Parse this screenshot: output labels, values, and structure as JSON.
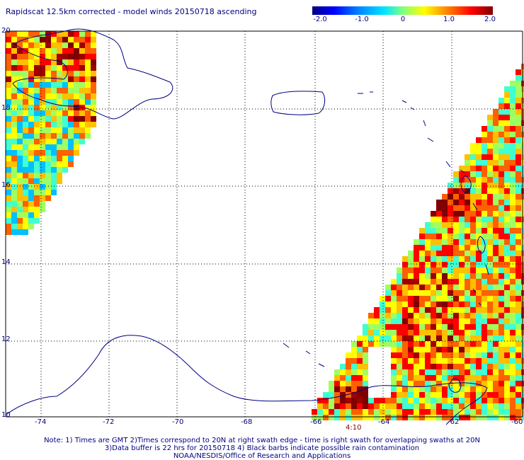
{
  "title": "Rapidscat 12.5km corrected - model winds 20150718 ascending",
  "colorbar": {
    "ticks": [
      "-2.0",
      "-1.0",
      "0",
      "1.0",
      "2.0"
    ],
    "range": [
      -2.0,
      2.0
    ]
  },
  "axes": {
    "lon_labels": [
      "-74",
      "-72",
      "-70",
      "-68",
      "-66",
      "-64",
      "-62",
      "-60"
    ],
    "lat_labels": [
      "20",
      "18",
      "16",
      "14",
      "12",
      "10"
    ],
    "lon_range": [
      -75.2,
      -60
    ],
    "lat_range": [
      10,
      20
    ]
  },
  "timestamp": "4:10",
  "notes": [
    "Note: 1) Times are GMT 2)Times correspond to 20N at right swath edge - time is right swath for overlapping swaths at 20N",
    "3)Data buffer is 22 hrs for 20150718 4) Black barbs indicate possible rain contamination",
    "NOAA/NESDIS/Office of Research and Applications"
  ],
  "colors": {
    "text": "#000080",
    "coast": "#000080",
    "grid": "#000000",
    "timestamp": "#8b0000"
  }
}
